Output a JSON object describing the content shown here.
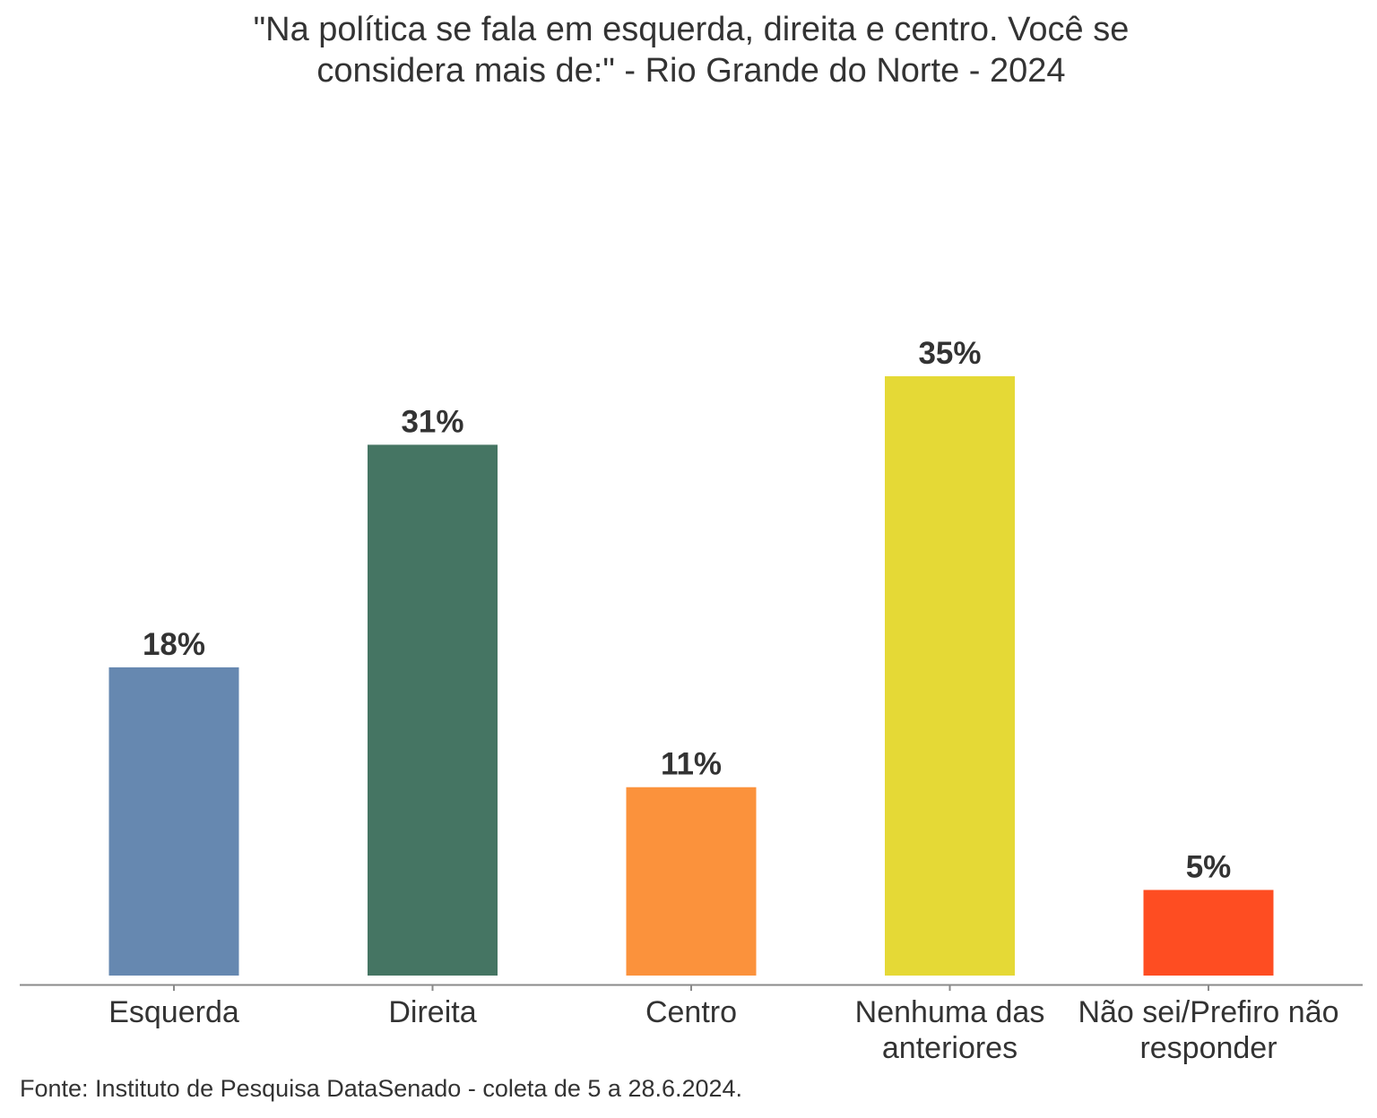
{
  "chart_data": {
    "type": "bar",
    "title_lines": [
      "\"Na política se fala em esquerda, direita e centro. Você se",
      "considera mais de:\" - Rio Grande do Norte - 2024"
    ],
    "categories": [
      [
        "Esquerda"
      ],
      [
        "Direita"
      ],
      [
        "Centro"
      ],
      [
        "Nenhuma das",
        "anteriores"
      ],
      [
        "Não sei/Prefiro não",
        "responder"
      ]
    ],
    "values": [
      18,
      31,
      11,
      35,
      5
    ],
    "labels": [
      "18%",
      "31%",
      "11%",
      "35%",
      "5%"
    ],
    "colors": [
      "#6688b0",
      "#457563",
      "#fb923c",
      "#e5d936",
      "#fe4d22"
    ],
    "xlabel": "",
    "ylabel": "",
    "ylim": [
      0,
      35
    ],
    "grid": false,
    "legend": "none"
  },
  "source": "Fonte: Instituto de Pesquisa DataSenado - coleta de 5 a 28.6.2024."
}
